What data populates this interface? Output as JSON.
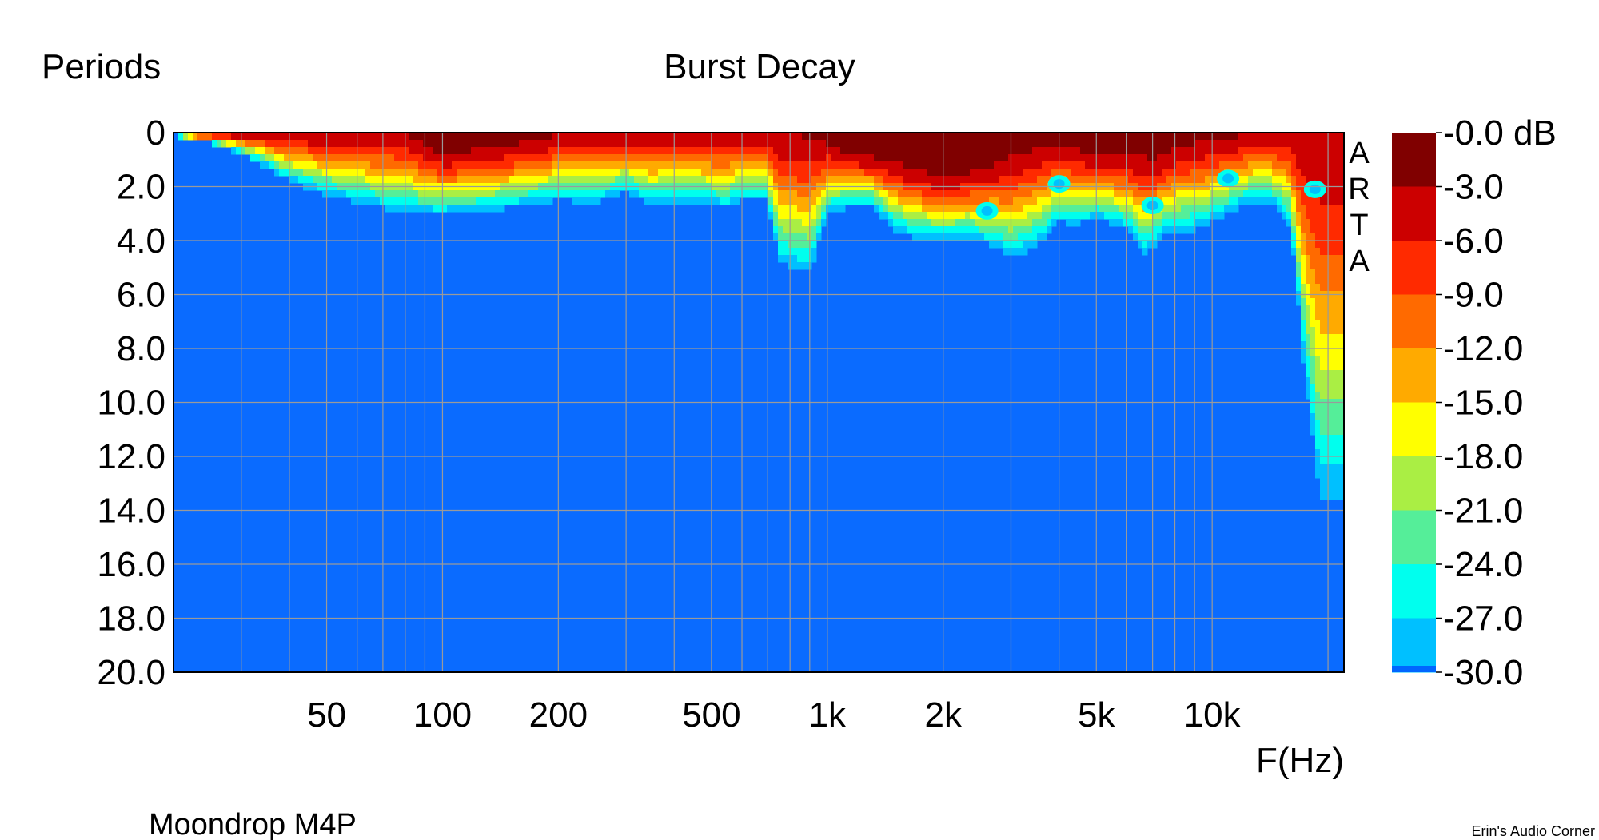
{
  "chart_data": {
    "type": "heatmap",
    "title": "Burst Decay",
    "ylabel": "Periods",
    "xlabel": "F(Hz)",
    "subtitle": "Moondrop M4P",
    "watermark": "ARTA",
    "credit": "Erin's Audio Corner",
    "x_scale": "log",
    "xlim": [
      20,
      22000
    ],
    "ylim": [
      20,
      0
    ],
    "grid": true,
    "x_ticks": [
      {
        "value": 50,
        "label": "50"
      },
      {
        "value": 100,
        "label": "100"
      },
      {
        "value": 200,
        "label": "200"
      },
      {
        "value": 500,
        "label": "500"
      },
      {
        "value": 1000,
        "label": "1k"
      },
      {
        "value": 2000,
        "label": "2k"
      },
      {
        "value": 5000,
        "label": "5k"
      },
      {
        "value": 10000,
        "label": "10k"
      }
    ],
    "y_ticks": [
      {
        "value": 0,
        "label": "0"
      },
      {
        "value": 2,
        "label": "2.0"
      },
      {
        "value": 4,
        "label": "4.0"
      },
      {
        "value": 6,
        "label": "6.0"
      },
      {
        "value": 8,
        "label": "8.0"
      },
      {
        "value": 10,
        "label": "10.0"
      },
      {
        "value": 12,
        "label": "12.0"
      },
      {
        "value": 14,
        "label": "14.0"
      },
      {
        "value": 16,
        "label": "16.0"
      },
      {
        "value": 18,
        "label": "18.0"
      },
      {
        "value": 20,
        "label": "20.0"
      }
    ],
    "colorbar": {
      "unit": "dB",
      "labels": [
        "-0.0 dB",
        "-3.0",
        "-6.0",
        "-9.0",
        "-12.0",
        "-15.0",
        "-18.0",
        "-21.0",
        "-24.0",
        "-27.0",
        "-30.0"
      ],
      "colors": [
        "#800000",
        "#cc0000",
        "#ff2a00",
        "#ff6a00",
        "#ffaa00",
        "#ffff00",
        "#aaee44",
        "#55ee99",
        "#00ffee",
        "#00c0ff",
        "#0066ff"
      ],
      "floor_color": "#0a6bff"
    },
    "decay_profile": {
      "frequency_hz": [
        20,
        25,
        30,
        35,
        40,
        50,
        60,
        70,
        80,
        90,
        100,
        130,
        160,
        200,
        250,
        300,
        350,
        400,
        500,
        550,
        600,
        700,
        750,
        800,
        900,
        1000,
        1100,
        1300,
        1500,
        1700,
        2000,
        2300,
        2700,
        3000,
        3300,
        3700,
        4000,
        4400,
        5000,
        5500,
        6000,
        6600,
        7000,
        7500,
        8000,
        9000,
        10000,
        11000,
        12000,
        13000,
        14000,
        15000,
        16000,
        16500,
        17000,
        17500,
        18000,
        19000,
        20000,
        21000,
        22000
      ],
      "periods_to_minus_30db": [
        0.1,
        0.4,
        0.8,
        1.3,
        1.8,
        2.3,
        2.6,
        2.8,
        2.9,
        3.0,
        3.0,
        2.9,
        2.7,
        2.5,
        2.6,
        2.2,
        2.7,
        2.6,
        2.7,
        2.8,
        2.5,
        2.5,
        4.8,
        5.0,
        5.2,
        3.0,
        2.8,
        2.7,
        3.6,
        3.9,
        4.0,
        3.9,
        4.2,
        4.6,
        4.4,
        3.9,
        3.3,
        3.4,
        3.2,
        3.4,
        3.6,
        4.5,
        4.2,
        3.8,
        3.6,
        3.6,
        3.3,
        3.0,
        2.7,
        2.6,
        2.6,
        2.9,
        3.5,
        5.5,
        7.5,
        9.5,
        10.5,
        13.5,
        13.5,
        13.5,
        13.5
      ],
      "periods_to_minus_3db": [
        0.0,
        0.0,
        0.0,
        0.0,
        0.0,
        0.0,
        0.0,
        0.0,
        0.0,
        0.5,
        0.8,
        0.6,
        0.4,
        0.1,
        0.0,
        0.0,
        0.0,
        0.0,
        0.0,
        0.0,
        0.0,
        0.0,
        0.0,
        0.0,
        0.2,
        0.4,
        0.7,
        0.9,
        1.1,
        1.4,
        1.6,
        1.5,
        1.2,
        0.9,
        0.7,
        0.5,
        0.4,
        0.6,
        0.8,
        0.9,
        0.8,
        0.9,
        1.0,
        0.8,
        0.6,
        0.4,
        0.3,
        0.2,
        0.1,
        0.0,
        0.0,
        0.0,
        0.0,
        0.0,
        0.0,
        0.0,
        0.0,
        0.0,
        0.0,
        0.0,
        0.0
      ],
      "resonance_spots": [
        {
          "frequency_hz": 2600,
          "period": 2.9
        },
        {
          "frequency_hz": 4000,
          "period": 1.9
        },
        {
          "frequency_hz": 7000,
          "period": 2.7
        },
        {
          "frequency_hz": 11000,
          "period": 1.7
        },
        {
          "frequency_hz": 18500,
          "period": 2.1
        }
      ]
    }
  }
}
